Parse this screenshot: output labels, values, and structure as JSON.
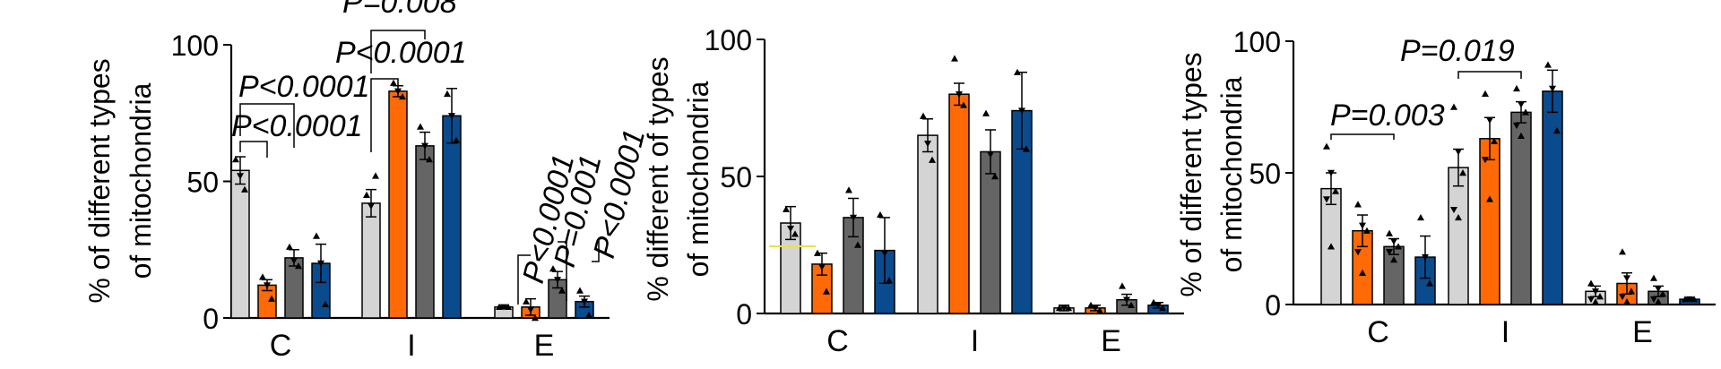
{
  "colors": {
    "light_grey": "#d4d4d4",
    "orange": "#ff6a06",
    "dark_grey": "#656565",
    "blue": "#0a4b8e",
    "annotation_yellow": "#e8e24a"
  },
  "chart_data": [
    {
      "type": "bar",
      "ylabel_line1": "% of different types",
      "ylabel_line2": "of mitochondria",
      "ylim": [
        0,
        100
      ],
      "yticks": [
        "0",
        "50",
        "100"
      ],
      "categories": [
        "C",
        "I",
        "E"
      ],
      "series": [
        {
          "color": "light_grey",
          "values": [
            54,
            42,
            4
          ],
          "errors": [
            5,
            5,
            0.5
          ],
          "points": [
            [
              58,
              52,
              47
            ],
            [
              45,
              41,
              52
            ],
            [
              4,
              4,
              4
            ]
          ]
        },
        {
          "color": "orange",
          "values": [
            12,
            83,
            4
          ],
          "errors": [
            2,
            2,
            3
          ],
          "points": [
            [
              15,
              12,
              7
            ],
            [
              86,
              83,
              81
            ],
            [
              6,
              3,
              0
            ]
          ]
        },
        {
          "color": "dark_grey",
          "values": [
            22,
            63,
            14
          ],
          "errors": [
            3,
            5,
            3
          ],
          "points": [
            [
              26,
              21,
              19
            ],
            [
              70,
              63,
              58
            ],
            [
              18,
              14,
              10
            ]
          ]
        },
        {
          "color": "blue",
          "values": [
            20,
            74,
            6
          ],
          "errors": [
            7,
            10,
            2
          ],
          "points": [
            [
              30,
              20,
              5
            ],
            [
              82,
              74,
              65
            ],
            [
              10,
              6,
              1
            ]
          ]
        }
      ],
      "annotations": [
        "P=0.008",
        "P<0.0001",
        "P<0.0001",
        "P<0.0001",
        "P<0.0001",
        "P=0.001",
        "P<0.0001"
      ]
    },
    {
      "type": "bar",
      "ylabel_line1": "% different of types",
      "ylabel_line2": "of mitochondria",
      "ylim": [
        0,
        100
      ],
      "yticks": [
        "0",
        "50",
        "100"
      ],
      "categories": [
        "C",
        "I",
        "E"
      ],
      "series": [
        {
          "color": "light_grey",
          "values": [
            33,
            65,
            2
          ],
          "errors": [
            6,
            6,
            1
          ],
          "points": [
            [
              38,
              31,
              29
            ],
            [
              72,
              62,
              56
            ],
            [
              2,
              2,
              2
            ]
          ]
        },
        {
          "color": "orange",
          "values": [
            18,
            80,
            2
          ],
          "errors": [
            4,
            4,
            1
          ],
          "points": [
            [
              22,
              17,
              8
            ],
            [
              93,
              80,
              76
            ],
            [
              3,
              2,
              1
            ]
          ]
        },
        {
          "color": "dark_grey",
          "values": [
            35,
            59,
            5
          ],
          "errors": [
            7,
            8,
            2
          ],
          "points": [
            [
              45,
              35,
              25
            ],
            [
              73,
              58,
              50
            ],
            [
              10,
              5,
              3
            ]
          ]
        },
        {
          "color": "blue",
          "values": [
            23,
            74,
            3
          ],
          "errors": [
            12,
            14,
            1
          ],
          "points": [
            [
              36,
              22,
              12
            ],
            [
              88,
              74,
              60
            ],
            [
              4,
              3,
              2
            ]
          ]
        }
      ]
    },
    {
      "type": "bar",
      "ylabel_line1": "% of different types",
      "ylabel_line2": "of mitochondria",
      "ylim": [
        0,
        100
      ],
      "yticks": [
        "0",
        "50",
        "100"
      ],
      "categories": [
        "C",
        "I",
        "E"
      ],
      "series": [
        {
          "color": "light_grey",
          "values": [
            44,
            52,
            5
          ],
          "errors": [
            6,
            7,
            2
          ],
          "points": [
            [
              60,
              50,
              43,
              40,
              22
            ],
            [
              75,
              58,
              50,
              36,
              33
            ],
            [
              8,
              5,
              3,
              2,
              1
            ]
          ]
        },
        {
          "color": "orange",
          "values": [
            28,
            63,
            8
          ],
          "errors": [
            6,
            8,
            4
          ],
          "points": [
            [
              38,
              30,
              28,
              20,
              12
            ],
            [
              80,
              70,
              62,
              55,
              40
            ],
            [
              20,
              10,
              5,
              3,
              1
            ]
          ]
        },
        {
          "color": "dark_grey",
          "values": [
            22,
            73,
            5
          ],
          "errors": [
            3,
            4,
            2
          ],
          "points": [
            [
              27,
              24,
              22,
              20,
              17
            ],
            [
              82,
              76,
              73,
              68,
              64
            ],
            [
              10,
              6,
              4,
              2,
              1
            ]
          ]
        },
        {
          "color": "blue",
          "values": [
            18,
            81,
            2
          ],
          "errors": [
            8,
            8,
            0.5
          ],
          "points": [
            [
              33,
              18,
              8
            ],
            [
              91,
              82,
              66
            ],
            [
              2,
              2,
              2
            ]
          ]
        }
      ],
      "annotations": [
        "P=0.003",
        "P=0.019"
      ]
    }
  ]
}
